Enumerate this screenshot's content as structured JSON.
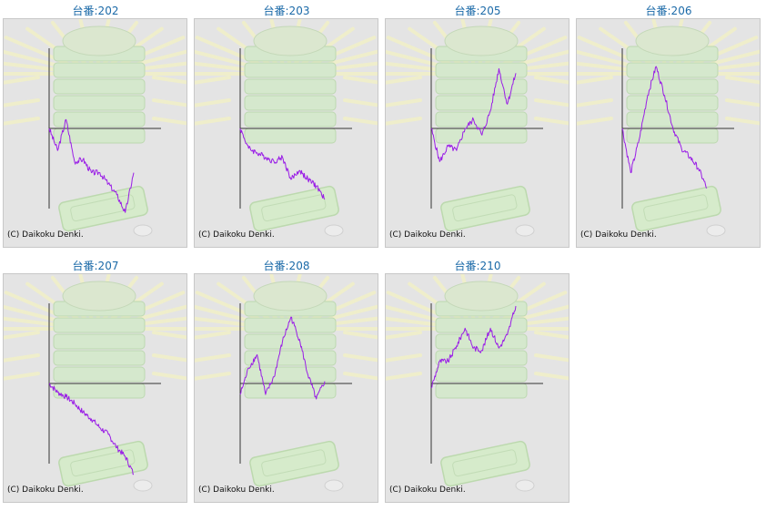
{
  "colors": {
    "background": "#e4e4e4",
    "title": "#1b6aa8",
    "line": "#9a1ee6",
    "axis": "#333333"
  },
  "copyright": "(C) Daikoku Denki.",
  "chart_data": [
    {
      "type": "line",
      "title": "台番:202",
      "x": [
        0,
        10,
        20,
        30,
        40,
        50,
        60,
        70,
        80,
        90,
        100
      ],
      "y": [
        0,
        -1000,
        400,
        -1500,
        -1400,
        -2000,
        -2000,
        -2500,
        -3000,
        -3800,
        -2000
      ],
      "ylim": [
        -3500,
        3500
      ]
    },
    {
      "type": "line",
      "title": "台番:203",
      "x": [
        0,
        10,
        20,
        30,
        40,
        50,
        60,
        70,
        80,
        90,
        100
      ],
      "y": [
        0,
        -900,
        -1100,
        -1300,
        -1500,
        -1300,
        -2300,
        -1900,
        -2300,
        -2600,
        -3200
      ],
      "ylim": [
        -3500,
        3500
      ]
    },
    {
      "type": "line",
      "title": "台番:205",
      "x": [
        0,
        10,
        20,
        30,
        40,
        50,
        60,
        70,
        80,
        90,
        100
      ],
      "y": [
        0,
        -1500,
        -800,
        -1000,
        0,
        400,
        -300,
        800,
        2700,
        1100,
        2500
      ],
      "ylim": [
        -3500,
        3500
      ]
    },
    {
      "type": "line",
      "title": "台番:206",
      "x": [
        0,
        10,
        20,
        30,
        40,
        50,
        60,
        70,
        80,
        90,
        100
      ],
      "y": [
        0,
        -2000,
        -500,
        1500,
        2800,
        1500,
        0,
        -900,
        -1300,
        -1800,
        -2700
      ],
      "ylim": [
        -3500,
        3500
      ]
    },
    {
      "type": "line",
      "title": "台番:207",
      "x": [
        0,
        10,
        20,
        30,
        40,
        50,
        60,
        70,
        80,
        90,
        100
      ],
      "y": [
        0,
        -400,
        -600,
        -900,
        -1300,
        -1600,
        -2000,
        -2300,
        -2900,
        -3300,
        -4100
      ],
      "ylim": [
        -3500,
        3500
      ]
    },
    {
      "type": "line",
      "title": "台番:208",
      "x": [
        0,
        10,
        20,
        30,
        40,
        50,
        60,
        70,
        80,
        90,
        100
      ],
      "y": [
        -500,
        700,
        1300,
        -500,
        300,
        1900,
        3000,
        2000,
        400,
        -700,
        100
      ],
      "ylim": [
        -3500,
        3500
      ]
    },
    {
      "type": "line",
      "title": "台番:210",
      "x": [
        0,
        10,
        20,
        30,
        40,
        50,
        60,
        70,
        80,
        90,
        100
      ],
      "y": [
        -200,
        1000,
        1000,
        1700,
        2500,
        1600,
        1500,
        2500,
        1600,
        2200,
        3500
      ],
      "ylim": [
        -3500,
        3500
      ]
    }
  ]
}
